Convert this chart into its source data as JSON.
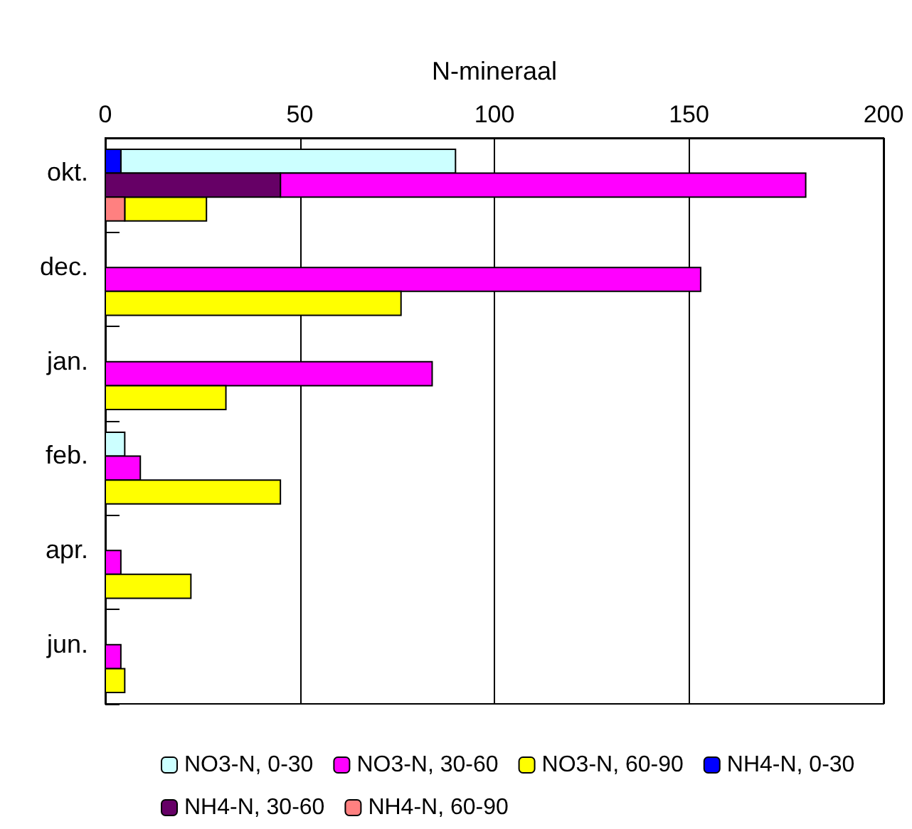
{
  "chart_data": {
    "type": "bar",
    "orientation": "horizontal",
    "xlabel": "N-mineraal",
    "categories": [
      "okt.",
      "dec.",
      "jan.",
      "feb.",
      "apr.",
      "jun."
    ],
    "series": [
      {
        "name": "NO3-N, 0-30",
        "color": "#ccffff",
        "values": [
          86,
          null,
          null,
          5,
          null,
          null
        ],
        "base": [
          4,
          null,
          null,
          0,
          null,
          null
        ]
      },
      {
        "name": "NO3-N, 30-60",
        "color": "#ff00ff",
        "values": [
          135,
          153,
          84,
          9,
          4,
          4
        ],
        "base": [
          45,
          0,
          0,
          0,
          0,
          0
        ]
      },
      {
        "name": "NO3-N, 60-90",
        "color": "#ffff00",
        "values": [
          21,
          76,
          31,
          45,
          22,
          5
        ],
        "base": [
          5,
          0,
          0,
          0,
          0,
          0
        ]
      },
      {
        "name": "NH4-N, 0-30",
        "color": "#0000ff",
        "values": [
          4,
          null,
          null,
          null,
          null,
          null
        ]
      },
      {
        "name": "NH4-N, 30-60",
        "color": "#660066",
        "values": [
          45,
          null,
          null,
          null,
          null,
          null
        ]
      },
      {
        "name": "NH4-N, 60-90",
        "color": "#ff8080",
        "values": [
          5,
          null,
          null,
          null,
          null,
          null
        ]
      }
    ],
    "xlim": [
      0,
      200
    ],
    "xticks": [
      0,
      50,
      100,
      150,
      200
    ],
    "grid": "x",
    "legend": "bottom"
  }
}
